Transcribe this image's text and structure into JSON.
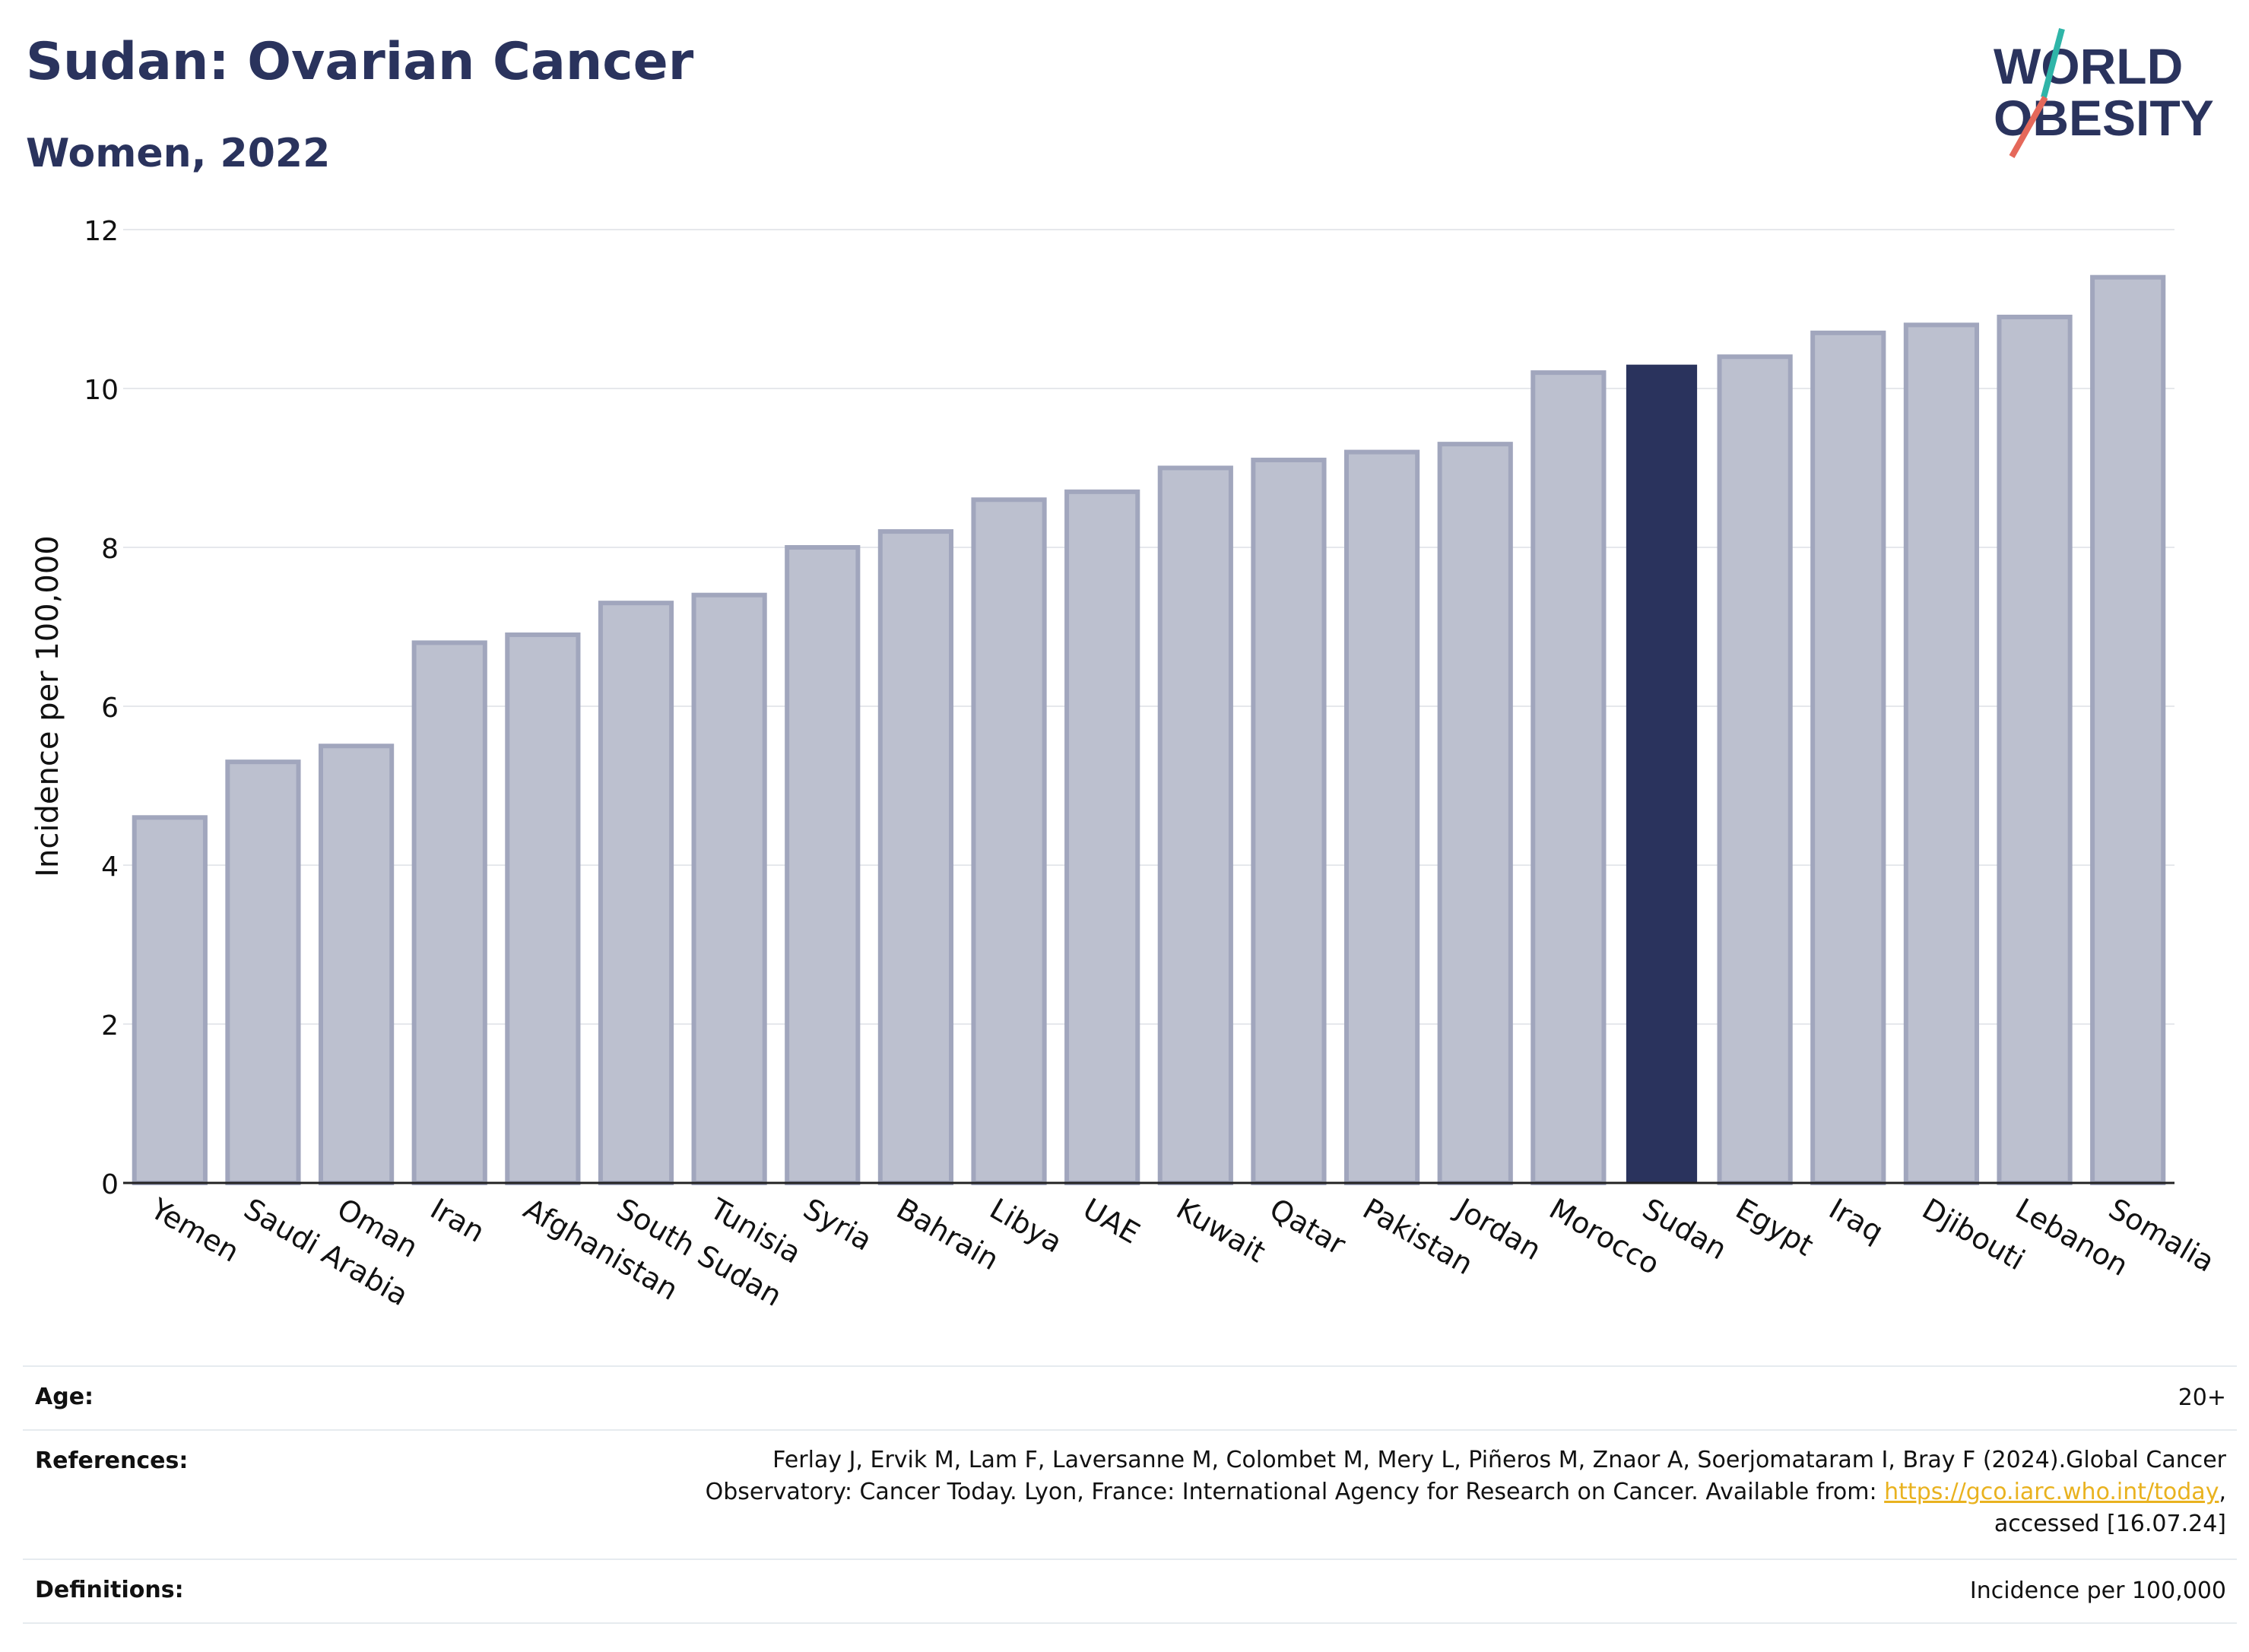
{
  "header": {
    "title": "Sudan: Ovarian Cancer",
    "subtitle": "Women, 2022"
  },
  "logo": {
    "line1": "WORLD",
    "line2": "OBESITY"
  },
  "chart_data": {
    "type": "bar",
    "categories": [
      "Yemen",
      "Saudi Arabia",
      "Oman",
      "Iran",
      "Afghanistan",
      "South Sudan",
      "Tunisia",
      "Syria",
      "Bahrain",
      "Libya",
      "UAE",
      "Kuwait",
      "Qatar",
      "Pakistan",
      "Jordan",
      "Morocco",
      "Sudan",
      "Egypt",
      "Iraq",
      "Djibouti",
      "Lebanon",
      "Somalia"
    ],
    "values": [
      4.6,
      5.3,
      5.5,
      6.8,
      6.9,
      7.3,
      7.4,
      8.0,
      8.2,
      8.6,
      8.7,
      9.0,
      9.1,
      9.2,
      9.3,
      10.2,
      10.3,
      10.4,
      10.7,
      10.8,
      10.9,
      11.4
    ],
    "highlight": "Sudan",
    "xlabel": "",
    "ylabel": "Incidence per 100,000",
    "ylim": [
      0,
      12
    ],
    "yticks": [
      0,
      2,
      4,
      6,
      8,
      10,
      12
    ],
    "grid": true,
    "colors": {
      "bar": "#bcc0cf",
      "bar_border": "#a1a6bd",
      "highlight": "#2a335d",
      "grid": "#e6e8ec"
    }
  },
  "footer": {
    "age_label": "Age:",
    "age_value": "20+",
    "ref_label": "References:",
    "ref_line1": "Ferlay J, Ervik M, Lam F, Laversanne M, Colombet M, Mery L, Piñeros M, Znaor A, Soerjomataram I, Bray F (2024).Global Cancer",
    "ref_line2_pre": "Observatory: Cancer Today. Lyon, France: International Agency for Research on Cancer. Available from: ",
    "ref_link": "https://gco.iarc.who.int/today",
    "ref_line2_post": ",",
    "ref_line3": "accessed [16.07.24]",
    "def_label": "Definitions:",
    "def_value": "Incidence per 100,000"
  }
}
